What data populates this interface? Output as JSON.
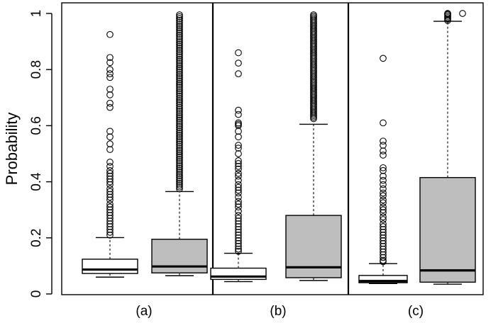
{
  "chart_data": {
    "type": "boxplot",
    "ylabel": "Probability",
    "ylim": [
      0,
      1.02
    ],
    "y_ticks": [
      0,
      0.2,
      0.4,
      0.6,
      0.8,
      1
    ],
    "y_tick_labels": [
      "0",
      "0.2",
      "0.4",
      "0.6",
      "0.8",
      "1"
    ],
    "grid": false,
    "fill_colors": [
      "#ffffff",
      "#bebebe"
    ],
    "panels": [
      {
        "label": "(a)",
        "boxes": [
          {
            "whisker_low": 0.06,
            "q1": 0.073,
            "median": 0.087,
            "q3": 0.124,
            "whisker_high": 0.201,
            "outliers": [
              0.925,
              0.843,
              0.825,
              0.8,
              0.785,
              0.772,
              0.73,
              0.71,
              0.68,
              0.665,
              0.58,
              0.56,
              0.535,
              0.515,
              0.47,
              0.455,
              0.44,
              0.43,
              0.42,
              0.41,
              0.4,
              0.39,
              0.375,
              0.365,
              0.355,
              0.345,
              0.335,
              0.32,
              0.31,
              0.3,
              0.29,
              0.28,
              0.27,
              0.26,
              0.25,
              0.24,
              0.23,
              0.22,
              0.21
            ]
          },
          {
            "whisker_low": 0.065,
            "q1": 0.075,
            "median": 0.098,
            "q3": 0.195,
            "whisker_high": 0.365,
            "outliers_dense_range": [
              0.375,
              0.995
            ],
            "outliers_dense_count": 95
          }
        ]
      },
      {
        "label": "(b)",
        "boxes": [
          {
            "whisker_low": 0.044,
            "q1": 0.052,
            "median": 0.062,
            "q3": 0.092,
            "whisker_high": 0.145,
            "outliers": [
              0.86,
              0.823,
              0.785,
              0.655,
              0.64,
              0.61,
              0.605,
              0.6,
              0.58,
              0.56,
              0.53,
              0.52,
              0.5,
              0.475,
              0.465,
              0.455,
              0.445,
              0.43,
              0.42,
              0.405,
              0.39,
              0.38,
              0.37,
              0.36,
              0.345,
              0.33,
              0.32,
              0.31,
              0.295,
              0.28,
              0.27,
              0.26,
              0.25,
              0.24,
              0.23,
              0.22,
              0.21,
              0.2,
              0.19,
              0.18,
              0.17,
              0.16,
              0.152
            ]
          },
          {
            "whisker_low": 0.048,
            "q1": 0.058,
            "median": 0.095,
            "q3": 0.28,
            "whisker_high": 0.605,
            "outliers_dense_range": [
              0.625,
              0.995
            ],
            "outliers_dense_count": 70
          }
        ]
      },
      {
        "label": "(c)",
        "boxes": [
          {
            "whisker_low": 0.037,
            "q1": 0.04,
            "median": 0.046,
            "q3": 0.066,
            "whisker_high": 0.108,
            "outliers": [
              0.84,
              0.61,
              0.545,
              0.53,
              0.51,
              0.495,
              0.45,
              0.44,
              0.42,
              0.405,
              0.39,
              0.375,
              0.36,
              0.35,
              0.335,
              0.325,
              0.31,
              0.3,
              0.29,
              0.275,
              0.265,
              0.25,
              0.24,
              0.23,
              0.22,
              0.21,
              0.2,
              0.19,
              0.18,
              0.17,
              0.16,
              0.15,
              0.14,
              0.13,
              0.12,
              0.115
            ]
          },
          {
            "whisker_low": 0.035,
            "q1": 0.042,
            "median": 0.084,
            "q3": 0.415,
            "whisker_high": 0.972,
            "outliers": [
              0.975,
              0.98,
              0.985,
              0.99,
              0.995,
              0.998,
              1.0
            ],
            "outliers_far": [
              1.0
            ]
          }
        ]
      }
    ]
  }
}
